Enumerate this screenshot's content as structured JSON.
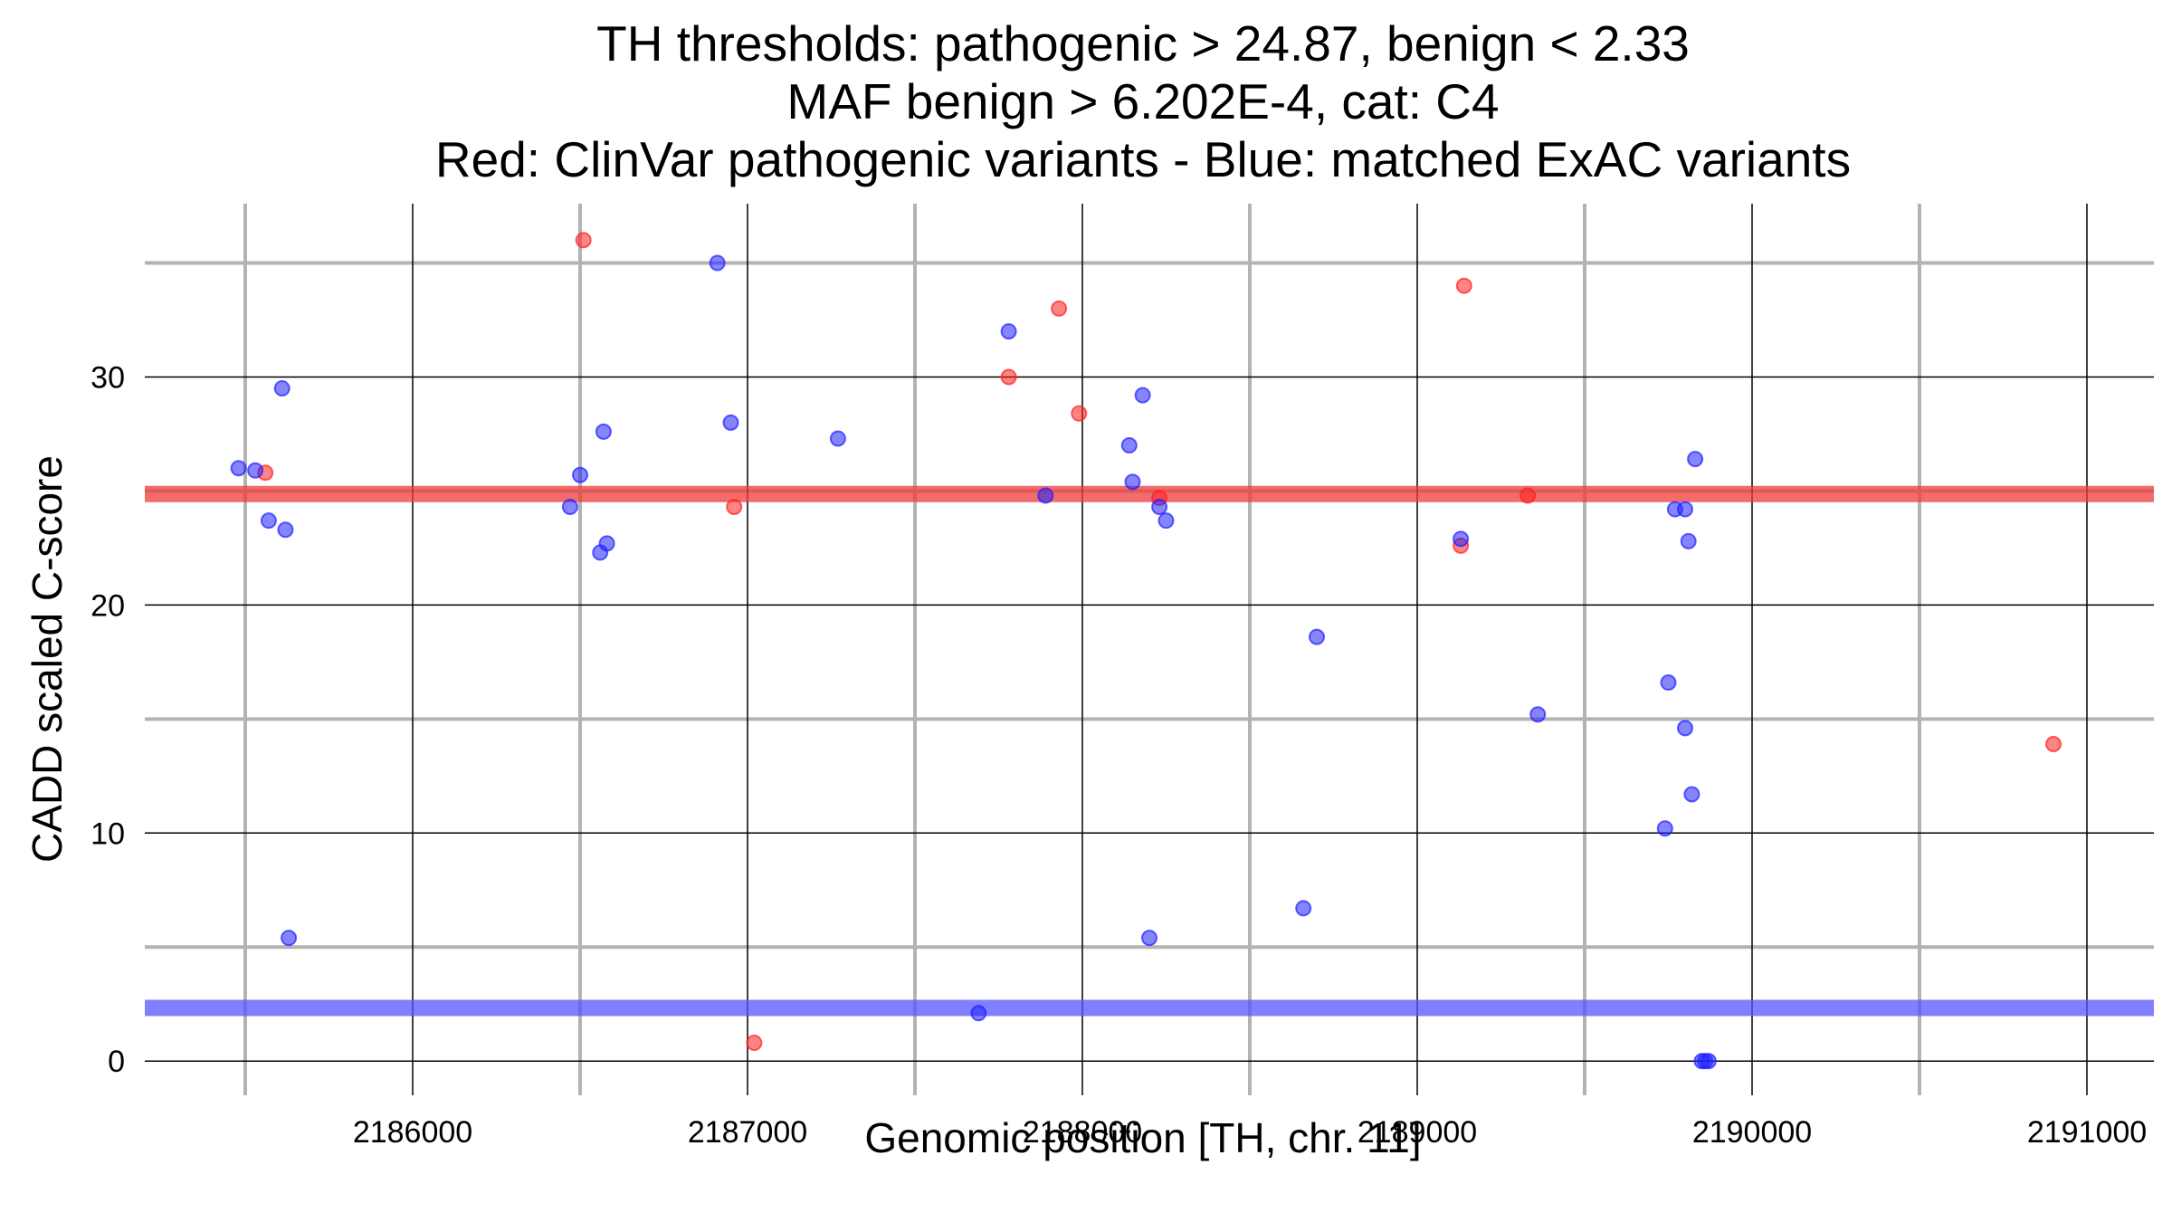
{
  "chart_data": {
    "type": "scatter",
    "title_lines": [
      "TH thresholds: pathogenic > 24.87, benign < 2.33",
      "MAF benign > 6.202E-4, cat: C4",
      "Red: ClinVar pathogenic variants - Blue: matched ExAC variants"
    ],
    "xlabel": "Genomic position [TH, chr. 11]",
    "ylabel": "CADD scaled C-score",
    "xlim": [
      2185200,
      2191200
    ],
    "ylim": [
      -1.5,
      37.6
    ],
    "x_ticks": [
      2186000,
      2187000,
      2188000,
      2189000,
      2190000,
      2191000
    ],
    "x_tick_labels": [
      "2186000",
      "2187000",
      "2188000",
      "2189000",
      "2190000",
      "2191000"
    ],
    "x_minor_gridlines": [
      2185500,
      2186500,
      2187500,
      2188500,
      2189500,
      2190500
    ],
    "y_ticks": [
      0,
      10,
      20,
      30
    ],
    "y_tick_labels": [
      "0",
      "10",
      "20",
      "30"
    ],
    "y_minor_gridlines": [
      5,
      15,
      25,
      35
    ],
    "grid": true,
    "thresholds": [
      {
        "name": "pathogenic",
        "value": 24.87,
        "color": "#ee3b3b"
      },
      {
        "name": "benign",
        "value": 2.33,
        "color": "#5555ff"
      }
    ],
    "colors": {
      "pathogenic": "#ff2020",
      "benign": "#2020ff"
    },
    "series": [
      {
        "name": "ClinVar pathogenic variants",
        "color": "#ff2020",
        "x": [
          2185560,
          2186510,
          2186960,
          2187020,
          2187780,
          2187930,
          2187990,
          2188230,
          2189130,
          2189140,
          2189330,
          2190900
        ],
        "y": [
          25.8,
          36.0,
          24.3,
          0.8,
          30.0,
          33.0,
          28.4,
          24.7,
          22.6,
          34.0,
          24.8,
          13.9
        ]
      },
      {
        "name": "matched ExAC variants",
        "color": "#2020ff",
        "x": [
          2185480,
          2185530,
          2185570,
          2185610,
          2185620,
          2185630,
          2186470,
          2186500,
          2186560,
          2186570,
          2186580,
          2186910,
          2186950,
          2187270,
          2187690,
          2187780,
          2187890,
          2188140,
          2188150,
          2188180,
          2188200,
          2188230,
          2188250,
          2188660,
          2188700,
          2189130,
          2189360,
          2189740,
          2189750,
          2189770,
          2189800,
          2189800,
          2189810,
          2189820,
          2189830,
          2189850,
          2189860,
          2189870
        ],
        "y": [
          26.0,
          25.9,
          23.7,
          29.5,
          23.3,
          5.4,
          24.3,
          25.7,
          22.3,
          27.6,
          22.7,
          35.0,
          28.0,
          27.3,
          2.1,
          32.0,
          24.8,
          27.0,
          25.4,
          29.2,
          5.4,
          24.3,
          23.7,
          6.7,
          18.6,
          22.9,
          15.2,
          10.2,
          16.6,
          24.2,
          24.2,
          14.6,
          22.8,
          11.7,
          26.4,
          0.0,
          0.0,
          0.0
        ]
      }
    ]
  }
}
